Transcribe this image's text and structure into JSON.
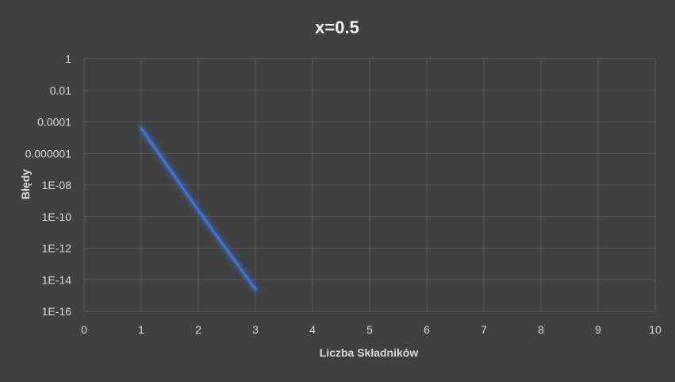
{
  "chart_data": {
    "type": "line",
    "title": "x=0.5",
    "xlabel": "Liczba Składników",
    "ylabel": "Błędy",
    "xlim": [
      0,
      10
    ],
    "x_ticks": [
      "0",
      "1",
      "2",
      "3",
      "4",
      "5",
      "6",
      "7",
      "8",
      "9",
      "10"
    ],
    "y_scale": "log",
    "ylim": [
      1e-16,
      1
    ],
    "y_ticks": [
      "1",
      "0.01",
      "0.0001",
      "0.000001",
      "1E-08",
      "1E-10",
      "1E-12",
      "1E-14",
      "1E-16"
    ],
    "grid": true,
    "legend": "none",
    "series": [
      {
        "color": "#4472c4",
        "x": [
          1,
          2,
          3
        ],
        "y": [
          4e-05,
          2.5e-10,
          2.5e-15
        ]
      }
    ],
    "colors": {
      "background": "#404040",
      "grid": "#595959",
      "line": "#4472c4",
      "glow": "#3b64c8"
    }
  }
}
